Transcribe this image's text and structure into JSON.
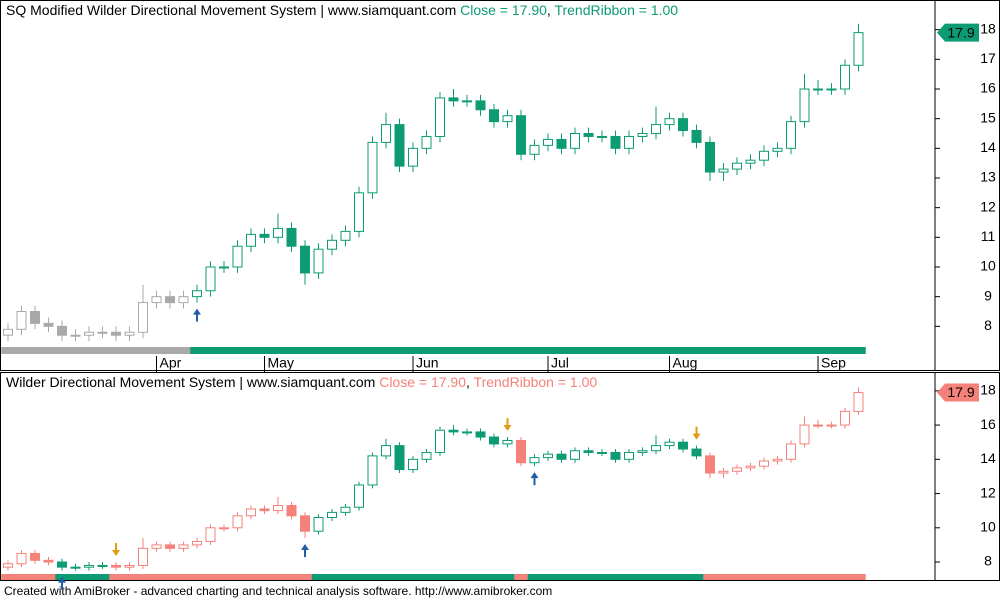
{
  "chart_data": {
    "type": "candlestick",
    "footer": "Created with AmiBroker - advanced charting and technical analysis software. http://www.amibroker.com",
    "categories": [
      null,
      null,
      null,
      null,
      null,
      null,
      null,
      null,
      null,
      null,
      null,
      "Apr",
      null,
      null,
      null,
      null,
      null,
      null,
      null,
      "May",
      null,
      null,
      null,
      null,
      null,
      null,
      null,
      null,
      null,
      null,
      "Jun",
      null,
      null,
      null,
      null,
      null,
      null,
      null,
      null,
      null,
      "Jul",
      null,
      null,
      null,
      null,
      null,
      null,
      null,
      null,
      "Aug",
      null,
      null,
      null,
      null,
      null,
      null,
      null,
      null,
      null,
      null,
      "Sep",
      null,
      null,
      null
    ],
    "open": [
      7.7,
      7.9,
      8.5,
      8.1,
      8.0,
      7.7,
      7.7,
      7.8,
      7.8,
      7.7,
      7.8,
      8.8,
      9.0,
      8.8,
      9.0,
      9.2,
      10.0,
      10.0,
      10.7,
      11.1,
      11.0,
      11.3,
      10.7,
      9.8,
      10.6,
      10.9,
      11.2,
      12.5,
      14.2,
      14.8,
      13.4,
      14.0,
      14.4,
      15.7,
      15.6,
      15.6,
      15.3,
      14.9,
      15.1,
      13.8,
      14.1,
      14.3,
      14.0,
      14.5,
      14.4,
      14.4,
      14.0,
      14.4,
      14.5,
      14.8,
      15.0,
      14.6,
      14.2,
      13.2,
      13.3,
      13.5,
      13.6,
      13.9,
      14.0,
      14.9,
      16.0,
      16.0,
      16.0,
      16.8
    ],
    "high": [
      8.1,
      8.7,
      8.7,
      8.3,
      8.2,
      7.9,
      8.0,
      8.0,
      8.0,
      8.0,
      9.4,
      9.2,
      9.2,
      9.2,
      9.4,
      10.2,
      10.2,
      10.9,
      11.3,
      11.3,
      11.8,
      11.5,
      10.9,
      10.8,
      11.1,
      11.4,
      12.7,
      14.4,
      15.2,
      15.0,
      14.2,
      14.6,
      15.9,
      16.0,
      15.8,
      15.8,
      15.5,
      15.3,
      15.3,
      14.3,
      14.5,
      14.5,
      14.7,
      14.7,
      14.6,
      14.6,
      14.6,
      14.7,
      15.4,
      15.2,
      15.2,
      14.8,
      14.4,
      13.5,
      13.7,
      13.8,
      14.1,
      14.2,
      15.1,
      16.5,
      16.3,
      16.2,
      17.0,
      18.2
    ],
    "low": [
      7.5,
      7.7,
      7.9,
      7.8,
      7.5,
      7.5,
      7.5,
      7.6,
      7.5,
      7.5,
      7.6,
      8.6,
      8.6,
      8.6,
      8.8,
      9.0,
      9.8,
      9.8,
      10.5,
      10.8,
      10.8,
      10.5,
      9.4,
      9.6,
      10.4,
      10.7,
      11.0,
      12.3,
      14.0,
      13.2,
      13.2,
      13.8,
      14.2,
      15.4,
      15.4,
      15.1,
      14.7,
      14.7,
      13.6,
      13.6,
      13.9,
      13.8,
      13.8,
      14.2,
      14.2,
      13.8,
      13.8,
      14.2,
      14.3,
      14.6,
      14.4,
      14.0,
      12.9,
      12.9,
      13.1,
      13.3,
      13.4,
      13.7,
      13.8,
      14.7,
      15.8,
      15.8,
      15.8,
      16.6
    ],
    "close": [
      7.9,
      8.5,
      8.1,
      8.0,
      7.7,
      7.7,
      7.8,
      7.8,
      7.7,
      7.8,
      8.8,
      9.0,
      8.8,
      9.0,
      9.2,
      10.0,
      10.0,
      10.7,
      11.1,
      11.0,
      11.3,
      10.7,
      9.8,
      10.6,
      10.9,
      11.2,
      12.5,
      14.2,
      14.8,
      13.4,
      14.0,
      14.4,
      15.7,
      15.6,
      15.6,
      15.3,
      14.9,
      15.1,
      13.8,
      14.1,
      14.3,
      14.0,
      14.5,
      14.4,
      14.4,
      14.0,
      14.4,
      14.5,
      14.8,
      15.0,
      14.6,
      14.2,
      13.2,
      13.3,
      13.5,
      13.6,
      13.9,
      14.0,
      14.9,
      16.0,
      16.0,
      16.0,
      16.8,
      17.9
    ],
    "palette": {
      "k": "#a9a9a9",
      "g": "#0d9b74",
      "r": "#f4827a",
      "up": "#1f5fa8",
      "down": "#e39a12"
    },
    "panes": [
      {
        "title": "SQ Modified Wilder Directional Movement System | www.siamquant.com",
        "separator": ", ",
        "legend": [
          {
            "text": "Close = 17.90",
            "color": "#0d9b74"
          },
          {
            "text": "TrendRibbon = 1.00",
            "color": "#0d9b74"
          }
        ],
        "last_label": "17.9",
        "last_color": "#0d9b74",
        "ylim": [
          7.0,
          19.0
        ],
        "yticks": [
          8,
          9,
          10,
          11,
          12,
          13,
          14,
          15,
          16,
          17,
          18
        ],
        "regime": "kkkkkkkkkkkkkkgggggggggggggggggggggggggggggggggggggggggggggggggg",
        "signals": [
          {
            "index": 14,
            "dir": "up"
          }
        ]
      },
      {
        "title": "Wilder Directional Movement System | www.siamquant.com",
        "separator": ", ",
        "legend": [
          {
            "text": "Close = 17.90",
            "color": "#f4827a"
          },
          {
            "text": "TrendRibbon = 1.00",
            "color": "#f4827a"
          }
        ],
        "last_label": "17.9",
        "last_color": "#f4827a",
        "ylim": [
          6.95,
          19.1
        ],
        "yticks": [
          8,
          10,
          12,
          14,
          16,
          18
        ],
        "regime": "rrrrggggrrrrrrrrrrrrrrrgggggggggggggggrgggggggggggggrrrrrrrrrrrr",
        "signals": [
          {
            "index": 4,
            "dir": "up"
          },
          {
            "index": 8,
            "dir": "down"
          },
          {
            "index": 22,
            "dir": "up"
          },
          {
            "index": 37,
            "dir": "down"
          },
          {
            "index": 39,
            "dir": "up"
          },
          {
            "index": 51,
            "dir": "down"
          }
        ]
      }
    ]
  }
}
